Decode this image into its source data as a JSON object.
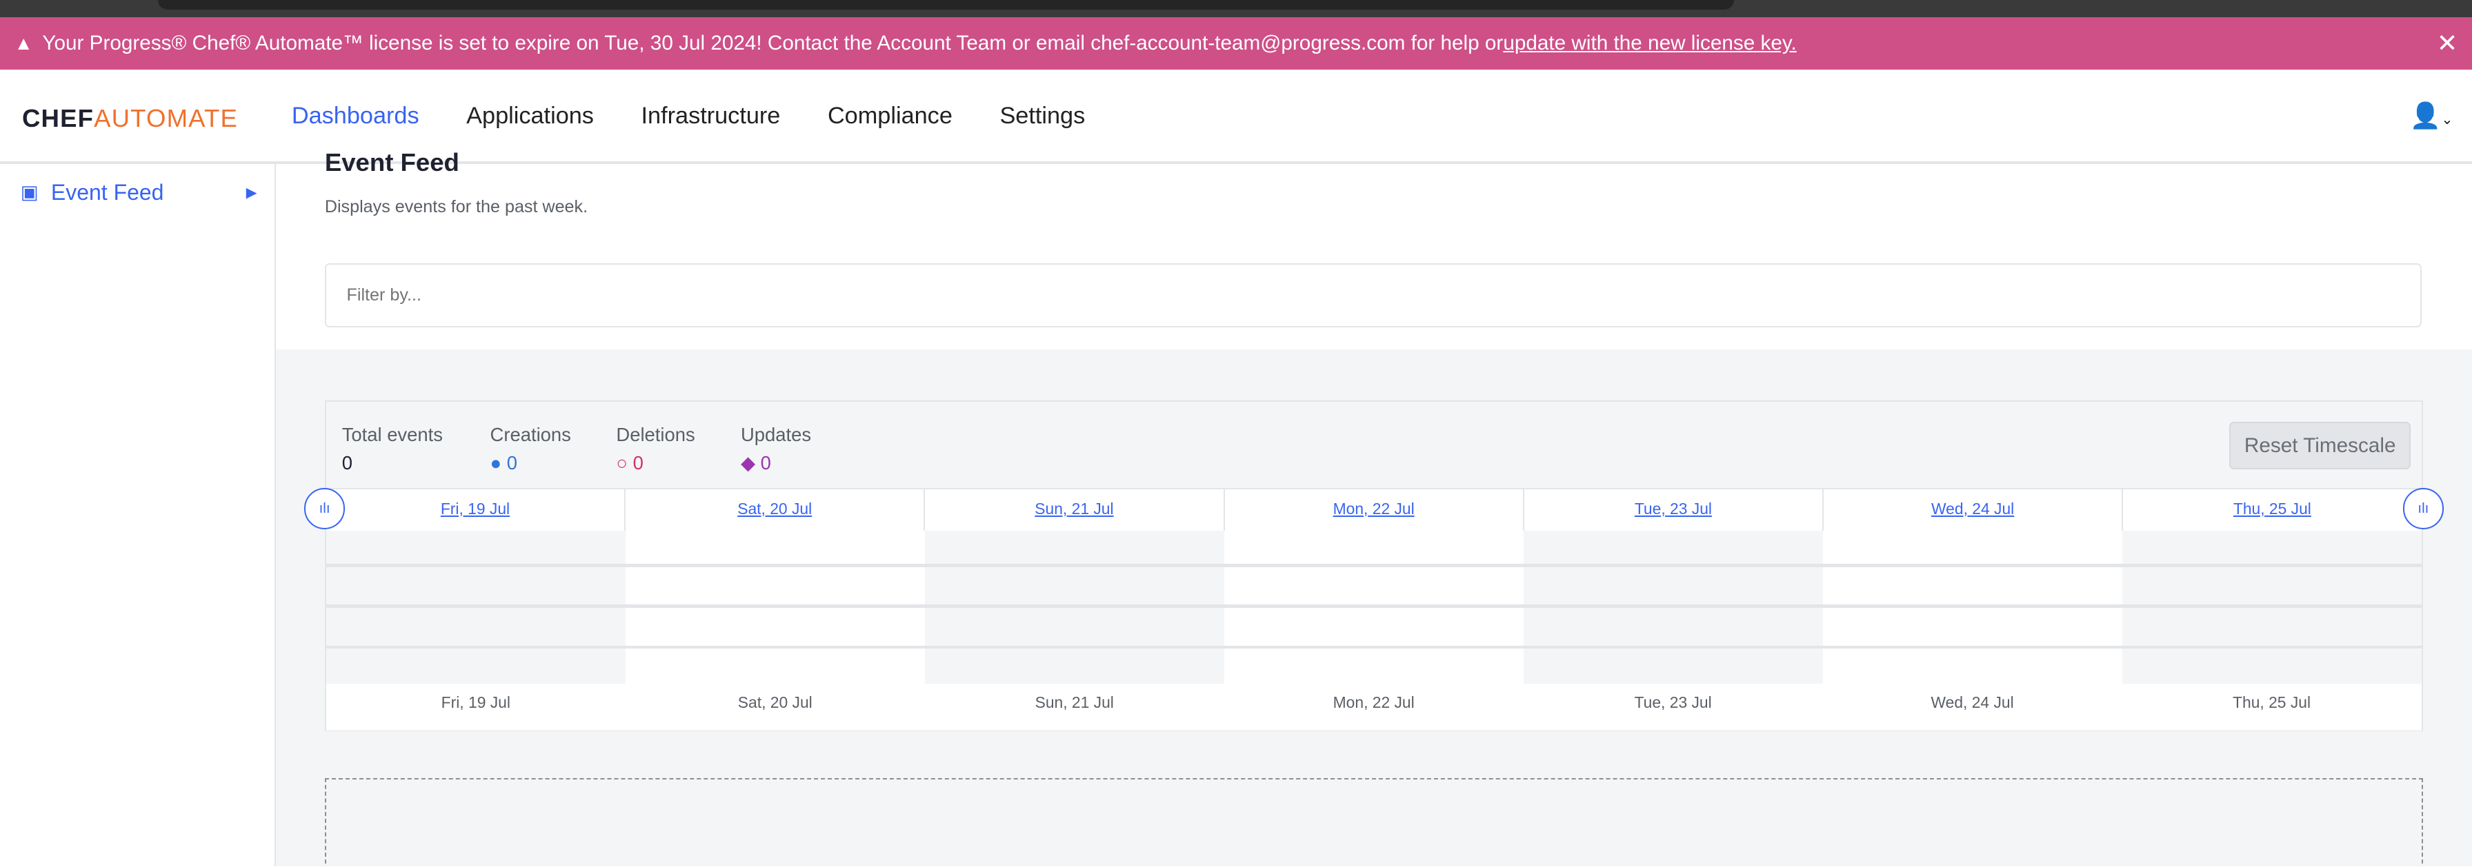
{
  "banner": {
    "text": "Your Progress® Chef® Automate™ license is set to expire on Tue, 30 Jul 2024! Contact the Account Team or email chef-account-team@progress.com for help or ",
    "link": "update with the new license key.",
    "color": "#cf4f87"
  },
  "logo": {
    "chef": "CHEF",
    "automate": "AUTOMATE"
  },
  "nav": {
    "items": [
      "Dashboards",
      "Applications",
      "Infrastructure",
      "Compliance",
      "Settings"
    ],
    "active": "Dashboards"
  },
  "sidebar": {
    "items": [
      {
        "label": "Event Feed",
        "icon": "calendar-icon"
      }
    ]
  },
  "page": {
    "title": "Event Feed",
    "subtitle": "Displays events for the past week.",
    "filter_placeholder": "Filter by..."
  },
  "stats": {
    "total": {
      "label": "Total events",
      "value": "0"
    },
    "creations": {
      "label": "Creations",
      "value": "0",
      "color": "#2f76d9"
    },
    "deletions": {
      "label": "Deletions",
      "value": "0",
      "color": "#d0336c"
    },
    "updates": {
      "label": "Updates",
      "value": "0",
      "color": "#9b35b0"
    }
  },
  "reset_label": "Reset Timescale",
  "days": [
    "Fri, 19 Jul",
    "Sat, 20 Jul",
    "Sun, 21 Jul",
    "Mon, 22 Jul",
    "Tue, 23 Jul",
    "Wed, 24 Jul",
    "Thu, 25 Jul"
  ]
}
